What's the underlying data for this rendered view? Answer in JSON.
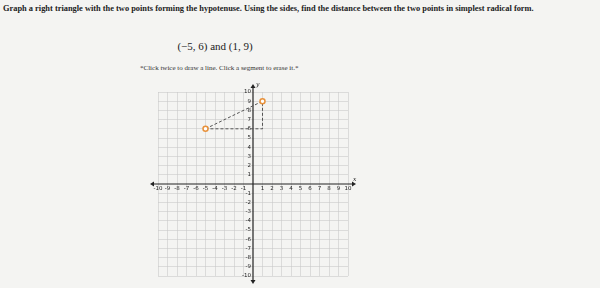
{
  "instructions": "Graph a right triangle with the two points forming the hypotenuse. Using the sides, find the distance between the two points in simplest radical form.",
  "points_text": "(−5, 6) and (1, 9)",
  "hint": "*Click twice to draw a line. Click a segment to erase it.*",
  "chart_data": {
    "type": "scatter",
    "x_label": "x",
    "y_label": "y",
    "xlim": [
      -10,
      10
    ],
    "ylim": [
      -10,
      10
    ],
    "xticks": [
      -10,
      -9,
      -8,
      -7,
      -6,
      -5,
      -4,
      -3,
      -2,
      -1,
      1,
      2,
      3,
      4,
      5,
      6,
      7,
      8,
      9,
      10
    ],
    "yticks": [
      -10,
      -9,
      -8,
      -7,
      -6,
      -5,
      -4,
      -3,
      -2,
      -1,
      1,
      2,
      3,
      4,
      5,
      6,
      7,
      8,
      9,
      10
    ],
    "grid": true,
    "series": [
      {
        "type": "line",
        "line_style": "dashed",
        "color": "#555555",
        "x": [
          -5,
          1,
          1,
          -5
        ],
        "values": [
          6,
          9,
          6,
          6
        ]
      },
      {
        "type": "scatter",
        "marker": "circle",
        "color": "#e8913a",
        "x": [
          -5,
          1
        ],
        "values": [
          6,
          9
        ]
      }
    ]
  }
}
